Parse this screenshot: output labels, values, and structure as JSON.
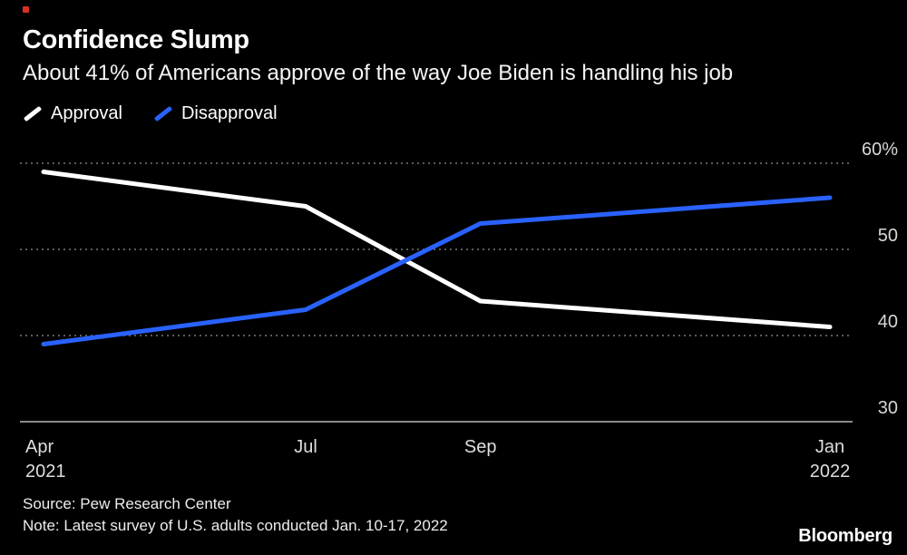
{
  "header": {
    "title": "Confidence Slump",
    "subtitle": "About 41% of Americans approve of the way Joe Biden is handling his job"
  },
  "legend": [
    {
      "label": "Approval",
      "color": "#ffffff"
    },
    {
      "label": "Disapproval",
      "color": "#2962ff"
    }
  ],
  "footer": {
    "source": "Source: Pew Research Center",
    "note": "Note: Latest survey of U.S. adults conducted Jan. 10-17, 2022",
    "brand": "Bloomberg"
  },
  "misc": {
    "red_marker_color": "#d93025"
  },
  "chart_data": {
    "type": "line",
    "title": "Confidence Slump",
    "subtitle": "About 41% of Americans approve of the way Joe Biden is handling his job",
    "x_labels": [
      [
        "Apr",
        "2021"
      ],
      [
        "Jul"
      ],
      [
        "Sep"
      ],
      [
        "Jan",
        "2022"
      ]
    ],
    "x_month_offsets": [
      0,
      3,
      5,
      9
    ],
    "series": [
      {
        "name": "Approval",
        "color": "#ffffff",
        "values": [
          59,
          55,
          44,
          41
        ]
      },
      {
        "name": "Disapproval",
        "color": "#2962ff",
        "values": [
          39,
          43,
          53,
          56
        ]
      }
    ],
    "y_ticks": [
      30,
      40,
      50,
      60
    ],
    "y_tick_labels": [
      "30",
      "40",
      "50",
      "60%"
    ],
    "ylim": [
      30,
      62
    ],
    "grid": "dotted-horizontal",
    "legend_position": "top-left",
    "background": "#000000"
  }
}
